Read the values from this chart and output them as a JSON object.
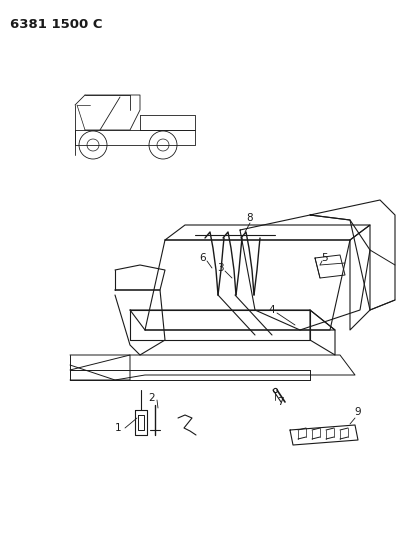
{
  "title": "6381 1500 C",
  "bg_color": "#ffffff",
  "line_color": "#1a1a1a",
  "fig_width": 4.08,
  "fig_height": 5.33,
  "dpi": 100
}
